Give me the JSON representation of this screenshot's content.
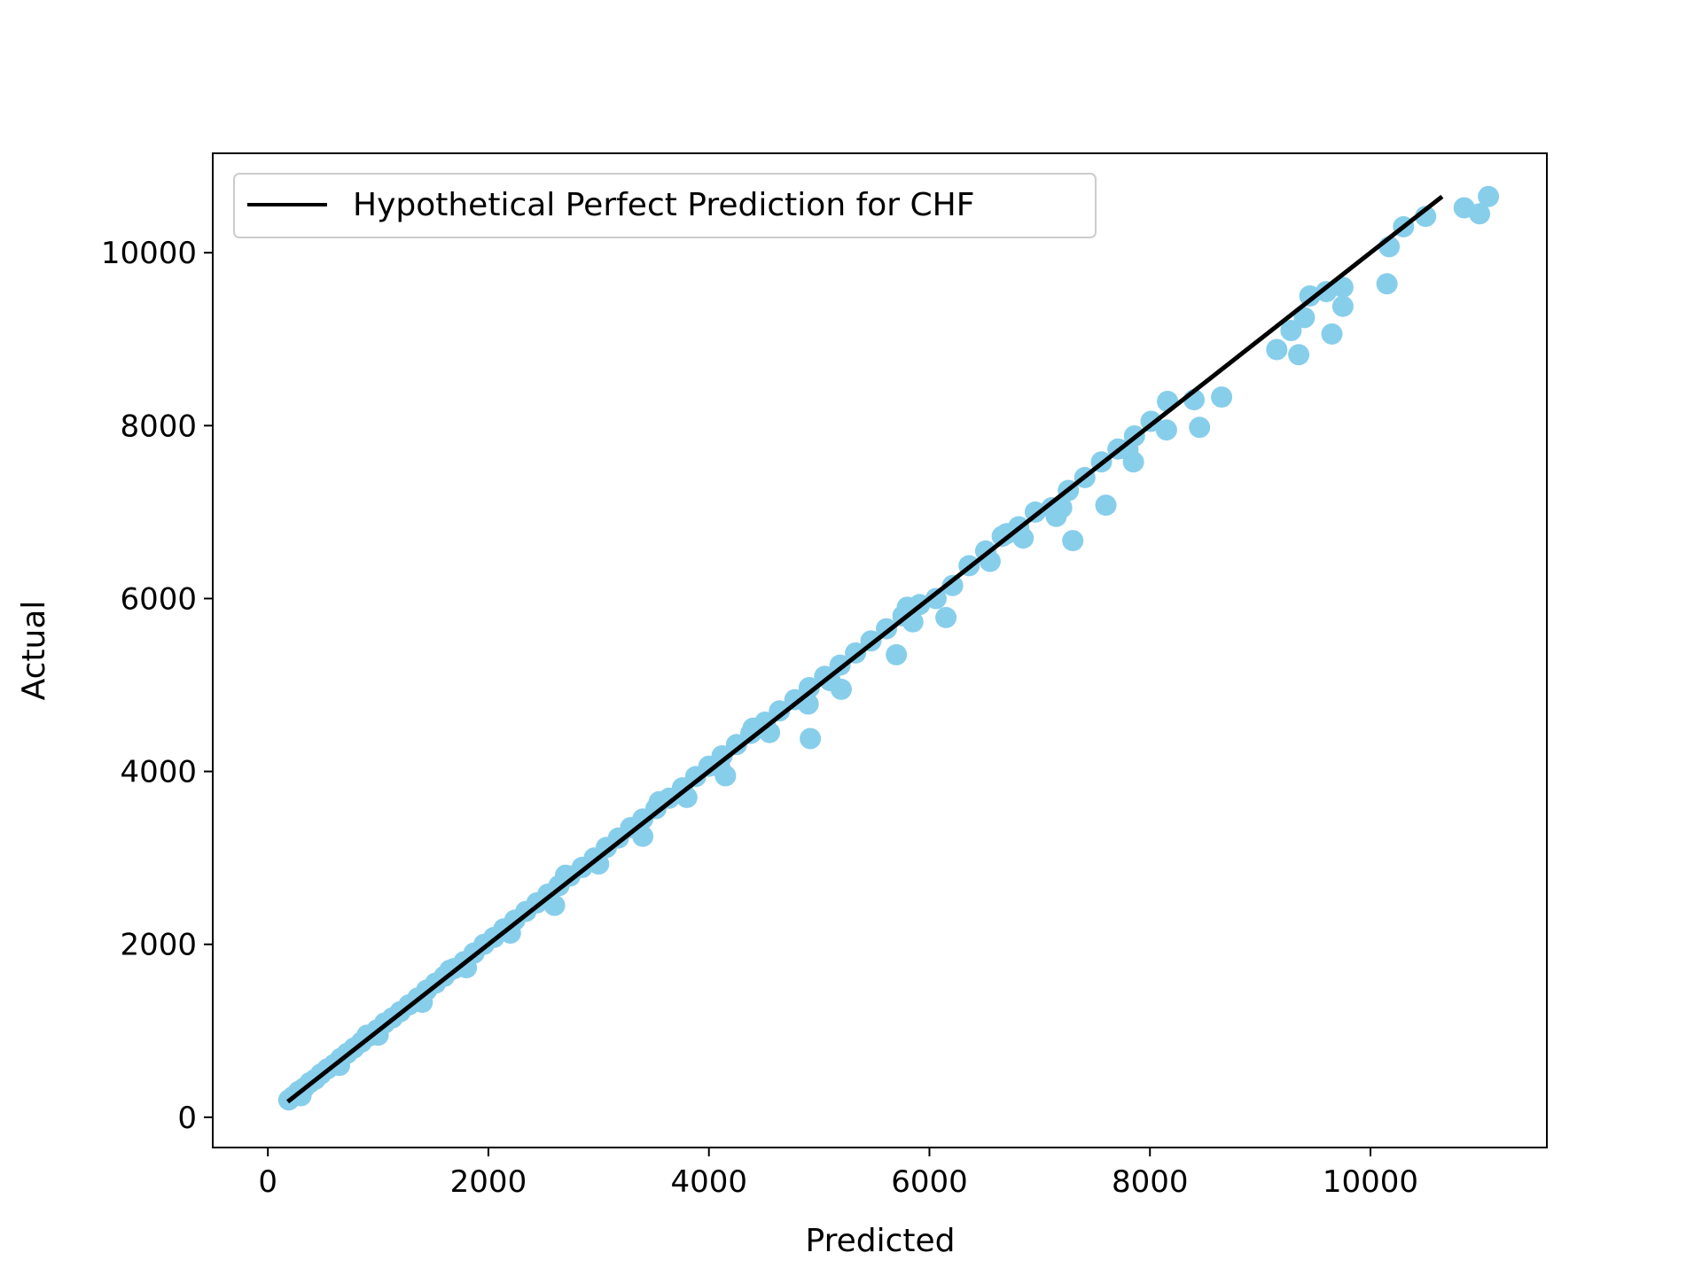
{
  "chart_data": {
    "type": "scatter",
    "xlabel": "Predicted",
    "ylabel": "Actual",
    "xlim": [
      -500,
      11600
    ],
    "ylim": [
      -350,
      11150
    ],
    "xticks": [
      0,
      2000,
      4000,
      6000,
      8000,
      10000
    ],
    "yticks": [
      0,
      2000,
      4000,
      6000,
      8000,
      10000
    ],
    "grid": false,
    "legend_position": "top-left",
    "marker_color": "#87CEEB",
    "line_color": "#000000",
    "reference_line": {
      "name": "Hypothetical Perfect Prediction for CHF",
      "x": [
        180,
        10650
      ],
      "y": [
        180,
        10650
      ]
    },
    "series": [
      {
        "points": [
          [
            190,
            200
          ],
          [
            230,
            240
          ],
          [
            280,
            300
          ],
          [
            330,
            340
          ],
          [
            380,
            400
          ],
          [
            430,
            440
          ],
          [
            480,
            500
          ],
          [
            540,
            560
          ],
          [
            600,
            610
          ],
          [
            660,
            680
          ],
          [
            720,
            740
          ],
          [
            780,
            800
          ],
          [
            850,
            870
          ],
          [
            920,
            940
          ],
          [
            990,
            1010
          ],
          [
            1060,
            1090
          ],
          [
            1130,
            1150
          ],
          [
            1200,
            1220
          ],
          [
            1280,
            1300
          ],
          [
            1360,
            1380
          ],
          [
            1440,
            1470
          ],
          [
            1520,
            1550
          ],
          [
            1600,
            1630
          ],
          [
            1690,
            1720
          ],
          [
            1780,
            1800
          ],
          [
            1870,
            1900
          ],
          [
            1960,
            2000
          ],
          [
            2050,
            2080
          ],
          [
            2140,
            2180
          ],
          [
            2240,
            2280
          ],
          [
            2340,
            2380
          ],
          [
            2440,
            2480
          ],
          [
            2540,
            2580
          ],
          [
            2640,
            2680
          ],
          [
            2740,
            2790
          ],
          [
            2850,
            2890
          ],
          [
            2960,
            3000
          ],
          [
            3070,
            3120
          ],
          [
            3180,
            3230
          ],
          [
            3290,
            3350
          ],
          [
            3400,
            3450
          ],
          [
            3520,
            3570
          ],
          [
            3640,
            3690
          ],
          [
            3760,
            3810
          ],
          [
            3880,
            3940
          ],
          [
            4000,
            4060
          ],
          [
            4120,
            4180
          ],
          [
            4250,
            4310
          ],
          [
            4380,
            4440
          ],
          [
            4510,
            4570
          ],
          [
            4640,
            4700
          ],
          [
            4780,
            4830
          ],
          [
            4910,
            4970
          ],
          [
            5050,
            5100
          ],
          [
            5190,
            5230
          ],
          [
            5330,
            5370
          ],
          [
            5470,
            5510
          ],
          [
            5610,
            5650
          ],
          [
            5760,
            5800
          ],
          [
            5910,
            5930
          ],
          [
            6060,
            6000
          ],
          [
            6210,
            6150
          ],
          [
            6360,
            6380
          ],
          [
            6510,
            6550
          ],
          [
            6660,
            6720
          ],
          [
            6810,
            6830
          ],
          [
            6960,
            7000
          ],
          [
            7110,
            7050
          ],
          [
            7260,
            7250
          ],
          [
            7410,
            7400
          ],
          [
            7560,
            7580
          ],
          [
            7710,
            7730
          ],
          [
            7860,
            7880
          ],
          [
            8010,
            8050
          ],
          [
            8160,
            8280
          ],
          [
            9450,
            9500
          ],
          [
            9600,
            9550
          ],
          [
            9750,
            9600
          ],
          [
            10300,
            10300
          ],
          [
            10500,
            10420
          ],
          [
            300,
            250
          ],
          [
            650,
            600
          ],
          [
            1000,
            950
          ],
          [
            1400,
            1330
          ],
          [
            1800,
            1730
          ],
          [
            2200,
            2130
          ],
          [
            2600,
            2450
          ],
          [
            3000,
            2930
          ],
          [
            3400,
            3250
          ],
          [
            3800,
            3700
          ],
          [
            4150,
            3950
          ],
          [
            4550,
            4450
          ],
          [
            4900,
            4780
          ],
          [
            5200,
            4950
          ],
          [
            5700,
            5350
          ],
          [
            5850,
            5730
          ],
          [
            6150,
            5780
          ],
          [
            6550,
            6430
          ],
          [
            6850,
            6700
          ],
          [
            7300,
            6670
          ],
          [
            7600,
            7080
          ],
          [
            7850,
            7580
          ],
          [
            8150,
            7950
          ],
          [
            8450,
            7980
          ],
          [
            8650,
            8330
          ],
          [
            9150,
            8880
          ],
          [
            9350,
            8820
          ],
          [
            9650,
            9060
          ],
          [
            9750,
            9380
          ],
          [
            10150,
            9640
          ],
          [
            10170,
            10070
          ],
          [
            10850,
            10520
          ],
          [
            10990,
            10450
          ],
          [
            11070,
            10650
          ],
          [
            4920,
            4380
          ],
          [
            9280,
            9100
          ],
          [
            9400,
            9250
          ],
          [
            6700,
            6750
          ],
          [
            5800,
            5900
          ],
          [
            4400,
            4500
          ],
          [
            3550,
            3650
          ],
          [
            2700,
            2800
          ],
          [
            1650,
            1700
          ],
          [
            900,
            950
          ],
          [
            8400,
            8300
          ],
          [
            7150,
            6950
          ],
          [
            7200,
            7050
          ],
          [
            7800,
            7720
          ],
          [
            5100,
            5050
          ],
          [
            4100,
            4050
          ]
        ]
      }
    ]
  }
}
